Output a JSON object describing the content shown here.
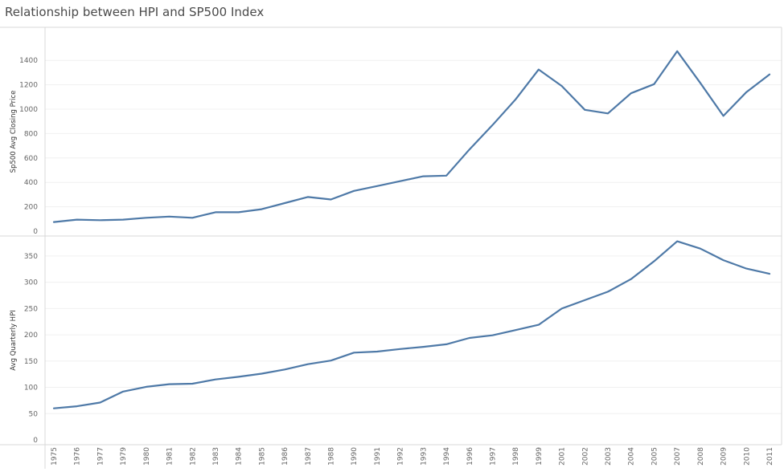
{
  "chart_data": {
    "type": "line",
    "title": "Relationship between HPI and SP500 Index",
    "x": [
      "1975",
      "1976",
      "1977",
      "1979",
      "1980",
      "1981",
      "1982",
      "1983",
      "1984",
      "1985",
      "1986",
      "1987",
      "1988",
      "1990",
      "1991",
      "1992",
      "1993",
      "1994",
      "1996",
      "1997",
      "1998",
      "1999",
      "2001",
      "2002",
      "2003",
      "2004",
      "2005",
      "2007",
      "2008",
      "2009",
      "2010",
      "2011"
    ],
    "xlabel": "",
    "panels": [
      {
        "ylabel": "Sp500 Avg Closing Price",
        "ylim": [
          0,
          1450
        ],
        "yticks": [
          0,
          200,
          400,
          600,
          800,
          1000,
          1200,
          1400
        ],
        "series": [
          {
            "values": [
              75,
              95,
              90,
              95,
              110,
              120,
              110,
              155,
              155,
              180,
              230,
              280,
              260,
              330,
              370,
              410,
              450,
              455,
              670,
              870,
              1080,
              1325,
              1190,
              995,
              965,
              1130,
              1205,
              1475,
              1215,
              945,
              1140,
              1285
            ]
          }
        ]
      },
      {
        "ylabel": "Avg  Quarterly HPI",
        "ylim": [
          0,
          390
        ],
        "yticks": [
          0,
          50,
          100,
          150,
          200,
          250,
          300,
          350
        ],
        "series": [
          {
            "values": [
              60,
              64,
              71,
              92,
              101,
              106,
              107,
              115,
              120,
              126,
              134,
              144,
              151,
              166,
              168,
              173,
              177,
              182,
              194,
              199,
              209,
              219,
              250,
              266,
              282,
              306,
              340,
              378,
              364,
              342,
              326,
              316
            ]
          }
        ]
      }
    ],
    "grid": true,
    "colors": {
      "line": "#4e79a7",
      "grid": "#f0f0f0",
      "border": "#d9d9d9"
    }
  }
}
